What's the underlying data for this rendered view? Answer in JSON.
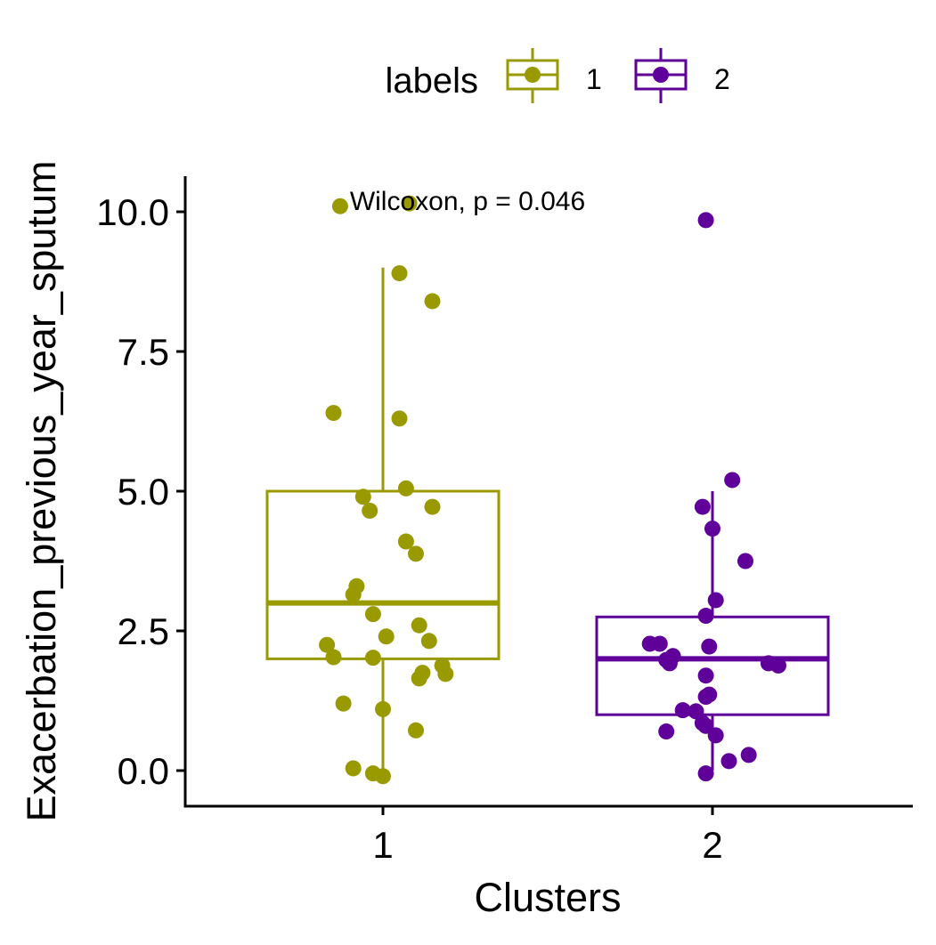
{
  "chart_data": {
    "type": "box",
    "xlabel": "Clusters",
    "ylabel": "Exacerbation_previous_year_sputum",
    "categories": [
      "1",
      "2"
    ],
    "ylim": [
      -0.6,
      10.6
    ],
    "y_ticks": [
      "0.0",
      "2.5",
      "5.0",
      "7.5",
      "10.0"
    ],
    "y_tick_values": [
      0,
      2.5,
      5,
      7.5,
      10
    ],
    "annotation": "Wilcoxon, p = 0.046",
    "legend": {
      "title": "labels",
      "position": "top",
      "entries": [
        "1",
        "2"
      ]
    },
    "series": [
      {
        "name": "1",
        "color": "#999900",
        "box": {
          "q1": 2.0,
          "median": 3.0,
          "q3": 5.0,
          "whisker_low": 0.0,
          "whisker_high": 9.0
        },
        "points": [
          {
            "x": 0.87,
            "y": 10.1
          },
          {
            "x": 1.08,
            "y": 10.15
          },
          {
            "x": 1.05,
            "y": 8.9
          },
          {
            "x": 1.15,
            "y": 8.4
          },
          {
            "x": 0.85,
            "y": 6.4
          },
          {
            "x": 1.05,
            "y": 6.3
          },
          {
            "x": 1.07,
            "y": 5.05
          },
          {
            "x": 0.94,
            "y": 4.9
          },
          {
            "x": 1.15,
            "y": 4.72
          },
          {
            "x": 0.96,
            "y": 4.65
          },
          {
            "x": 1.07,
            "y": 4.1
          },
          {
            "x": 1.1,
            "y": 3.88
          },
          {
            "x": 0.92,
            "y": 3.3
          },
          {
            "x": 0.91,
            "y": 3.15
          },
          {
            "x": 0.97,
            "y": 2.8
          },
          {
            "x": 1.11,
            "y": 2.6
          },
          {
            "x": 1.01,
            "y": 2.4
          },
          {
            "x": 1.14,
            "y": 2.32
          },
          {
            "x": 0.83,
            "y": 2.25
          },
          {
            "x": 0.85,
            "y": 2.03
          },
          {
            "x": 0.97,
            "y": 2.02
          },
          {
            "x": 1.18,
            "y": 1.88
          },
          {
            "x": 1.12,
            "y": 1.75
          },
          {
            "x": 1.19,
            "y": 1.73
          },
          {
            "x": 1.11,
            "y": 1.65
          },
          {
            "x": 0.88,
            "y": 1.2
          },
          {
            "x": 1.0,
            "y": 1.1
          },
          {
            "x": 1.1,
            "y": 0.72
          },
          {
            "x": 0.91,
            "y": 0.04
          },
          {
            "x": 0.97,
            "y": -0.05
          },
          {
            "x": 1.0,
            "y": -0.1
          }
        ]
      },
      {
        "name": "2",
        "color": "#5e0099",
        "box": {
          "q1": 1.0,
          "median": 2.0,
          "q3": 2.75,
          "whisker_low": 0.0,
          "whisker_high": 5.0
        },
        "points": [
          {
            "x": 1.98,
            "y": 9.85
          },
          {
            "x": 2.06,
            "y": 5.2
          },
          {
            "x": 1.97,
            "y": 4.72
          },
          {
            "x": 2.0,
            "y": 4.33
          },
          {
            "x": 2.1,
            "y": 3.75
          },
          {
            "x": 2.01,
            "y": 3.05
          },
          {
            "x": 1.98,
            "y": 2.77
          },
          {
            "x": 1.81,
            "y": 2.27
          },
          {
            "x": 1.84,
            "y": 2.27
          },
          {
            "x": 1.99,
            "y": 2.22
          },
          {
            "x": 1.88,
            "y": 2.05
          },
          {
            "x": 1.86,
            "y": 1.98
          },
          {
            "x": 1.87,
            "y": 1.92
          },
          {
            "x": 2.17,
            "y": 1.92
          },
          {
            "x": 2.2,
            "y": 1.88
          },
          {
            "x": 1.98,
            "y": 1.7
          },
          {
            "x": 1.99,
            "y": 1.36
          },
          {
            "x": 1.98,
            "y": 1.32
          },
          {
            "x": 1.91,
            "y": 1.08
          },
          {
            "x": 1.95,
            "y": 1.06
          },
          {
            "x": 1.97,
            "y": 0.85
          },
          {
            "x": 1.98,
            "y": 0.8
          },
          {
            "x": 1.86,
            "y": 0.7
          },
          {
            "x": 2.01,
            "y": 0.63
          },
          {
            "x": 2.11,
            "y": 0.28
          },
          {
            "x": 2.05,
            "y": 0.17
          },
          {
            "x": 1.98,
            "y": -0.05
          }
        ]
      }
    ]
  }
}
